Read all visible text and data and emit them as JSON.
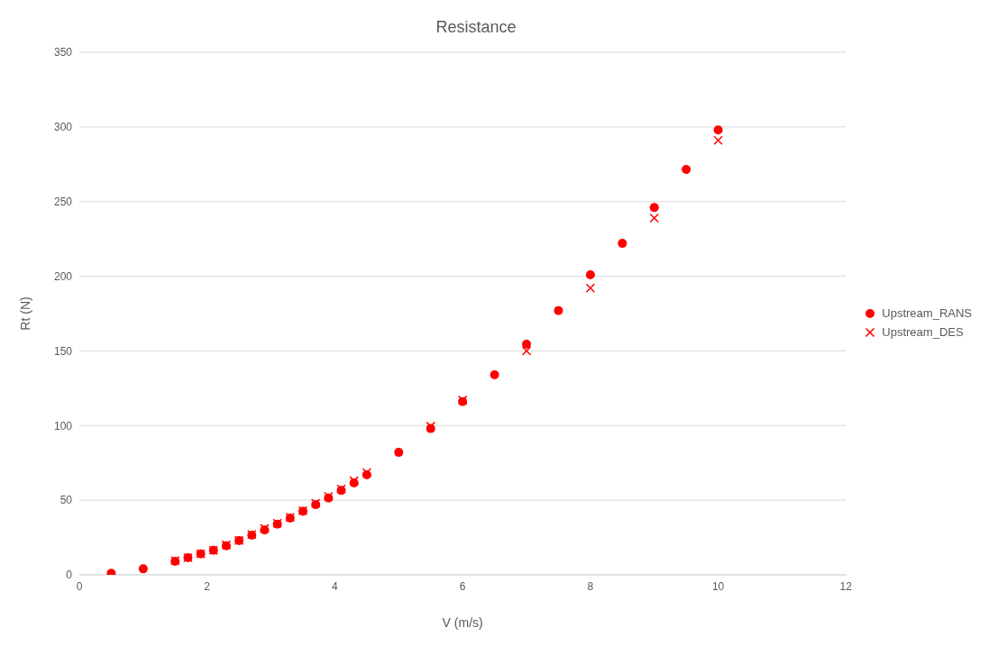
{
  "chart_data": {
    "type": "scatter",
    "title": "Resistance",
    "xlabel": "V (m/s)",
    "ylabel": "Rt (N)",
    "xlim": [
      0,
      12
    ],
    "xticks": [
      0,
      2,
      4,
      6,
      8,
      10,
      12
    ],
    "ylim": [
      0,
      350
    ],
    "yticks": [
      0,
      50,
      100,
      150,
      200,
      250,
      300,
      350
    ],
    "grid": "y",
    "legend": "right",
    "series": [
      {
        "name": "Upstream_RANS",
        "color": "#ff0000",
        "marker": "circle",
        "x": [
          0.5,
          1,
          1.5,
          1.7,
          1.9,
          2.1,
          2.3,
          2.5,
          2.7,
          2.9,
          3.1,
          3.3,
          3.5,
          3.7,
          3.9,
          4.1,
          4.3,
          4.5,
          5,
          5.5,
          6,
          6.5,
          7,
          7.5,
          8,
          8.5,
          9,
          9.5,
          10
        ],
        "values": [
          1,
          4,
          9,
          11.5,
          14,
          16.5,
          19.5,
          23,
          26.5,
          30,
          34,
          38,
          42.5,
          47,
          51.5,
          56.5,
          61.5,
          67,
          82,
          98,
          116,
          134,
          154.5,
          177,
          201,
          222,
          246,
          271.5,
          298
        ]
      },
      {
        "name": "Upstream_DES",
        "color": "#ff0000",
        "marker": "cross",
        "x": [
          1.5,
          1.7,
          1.9,
          2.1,
          2.3,
          2.5,
          2.7,
          2.9,
          3.1,
          3.3,
          3.5,
          3.7,
          3.9,
          4.1,
          4.3,
          4.5,
          5.5,
          6,
          7,
          8,
          9,
          10
        ],
        "values": [
          9.5,
          11.5,
          14,
          16.5,
          20,
          23,
          27,
          31,
          34.5,
          38.5,
          43,
          48,
          52.5,
          57.5,
          63,
          68.5,
          99.5,
          117,
          150,
          192,
          239,
          291
        ]
      }
    ]
  }
}
